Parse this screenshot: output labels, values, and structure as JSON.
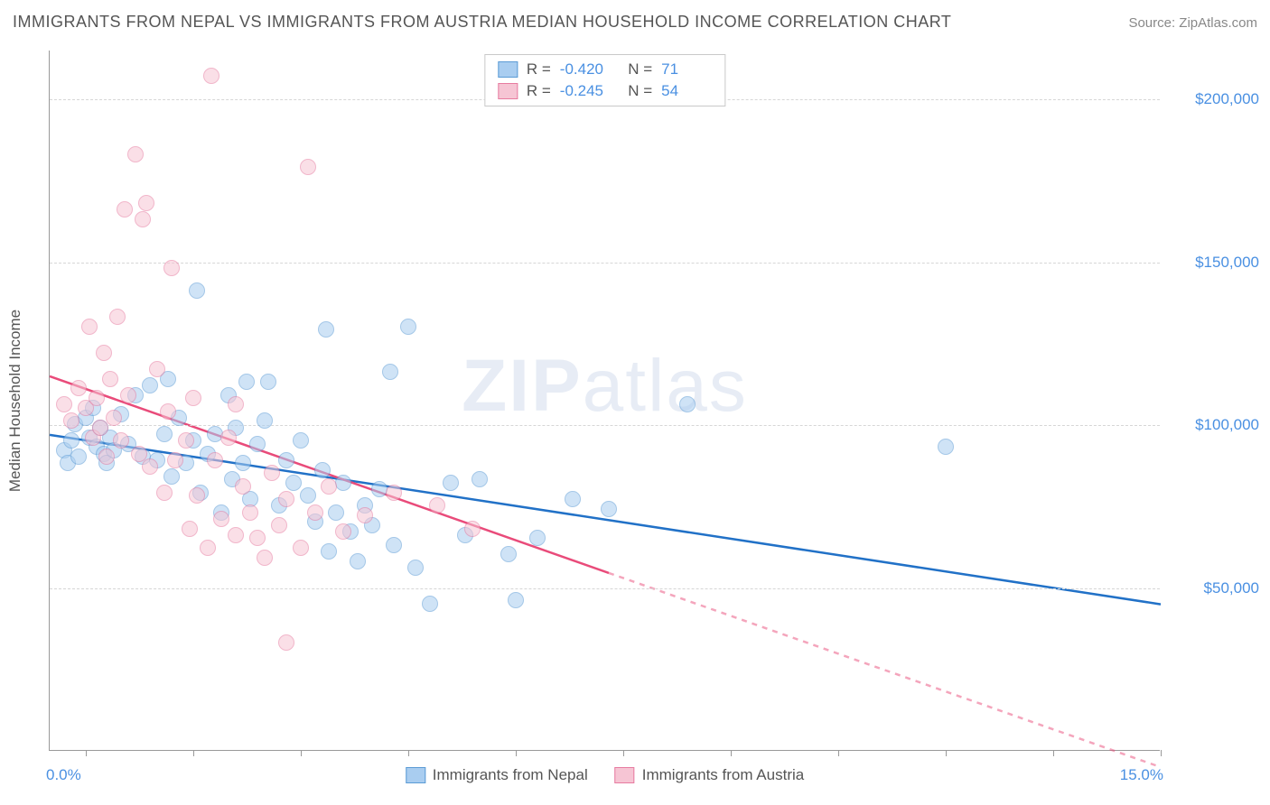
{
  "title": "IMMIGRANTS FROM NEPAL VS IMMIGRANTS FROM AUSTRIA MEDIAN HOUSEHOLD INCOME CORRELATION CHART",
  "source": "Source: ZipAtlas.com",
  "watermark_a": "ZIP",
  "watermark_b": "atlas",
  "yaxis_title": "Median Household Income",
  "xaxis_min_label": "0.0%",
  "xaxis_max_label": "15.0%",
  "chart": {
    "type": "scatter",
    "x_domain": [
      -0.5,
      15.0
    ],
    "y_domain": [
      0,
      215000
    ],
    "x_ticks": [
      0,
      1.5,
      3.0,
      4.5,
      6.0,
      7.5,
      9.0,
      10.5,
      12.0,
      13.5,
      15.0
    ],
    "y_gridlines": [
      {
        "value": 50000,
        "label": "$50,000"
      },
      {
        "value": 100000,
        "label": "$100,000"
      },
      {
        "value": 150000,
        "label": "$150,000"
      },
      {
        "value": 200000,
        "label": "$200,000"
      }
    ],
    "background_color": "#ffffff",
    "grid_color": "#d6d6d6",
    "axis_color": "#999999",
    "label_color": "#4a90e2",
    "point_radius": 9,
    "point_opacity": 0.55,
    "line_width": 2.5,
    "series": [
      {
        "name": "Immigrants from Nepal",
        "fill": "#a9cdf0",
        "stroke": "#5b9bd5",
        "line_color": "#2171c7",
        "r_value": "-0.420",
        "n_value": "71",
        "regression": {
          "x1": -0.5,
          "y1": 97000,
          "x2": 15.0,
          "y2": 45000,
          "solid_until_x": 15.0
        },
        "points": [
          [
            -0.3,
            92000
          ],
          [
            -0.25,
            88000
          ],
          [
            -0.2,
            95000
          ],
          [
            -0.15,
            100000
          ],
          [
            -0.1,
            90000
          ],
          [
            0.0,
            102000
          ],
          [
            0.05,
            96000
          ],
          [
            0.1,
            105000
          ],
          [
            0.15,
            93000
          ],
          [
            0.2,
            99000
          ],
          [
            0.25,
            91000
          ],
          [
            0.3,
            88000
          ],
          [
            0.35,
            96000
          ],
          [
            0.4,
            92000
          ],
          [
            0.5,
            103000
          ],
          [
            0.6,
            94000
          ],
          [
            0.7,
            109000
          ],
          [
            0.8,
            90000
          ],
          [
            0.9,
            112000
          ],
          [
            1.0,
            89000
          ],
          [
            1.1,
            97000
          ],
          [
            1.15,
            114000
          ],
          [
            1.2,
            84000
          ],
          [
            1.3,
            102000
          ],
          [
            1.4,
            88000
          ],
          [
            1.5,
            95000
          ],
          [
            1.55,
            141000
          ],
          [
            1.6,
            79000
          ],
          [
            1.7,
            91000
          ],
          [
            1.8,
            97000
          ],
          [
            1.9,
            73000
          ],
          [
            2.0,
            109000
          ],
          [
            2.05,
            83000
          ],
          [
            2.1,
            99000
          ],
          [
            2.2,
            88000
          ],
          [
            2.25,
            113000
          ],
          [
            2.3,
            77000
          ],
          [
            2.4,
            94000
          ],
          [
            2.5,
            101000
          ],
          [
            2.55,
            113000
          ],
          [
            2.7,
            75000
          ],
          [
            2.8,
            89000
          ],
          [
            2.9,
            82000
          ],
          [
            3.0,
            95000
          ],
          [
            3.1,
            78000
          ],
          [
            3.2,
            70000
          ],
          [
            3.3,
            86000
          ],
          [
            3.35,
            129000
          ],
          [
            3.4,
            61000
          ],
          [
            3.5,
            73000
          ],
          [
            3.6,
            82000
          ],
          [
            3.7,
            67000
          ],
          [
            3.8,
            58000
          ],
          [
            3.9,
            75000
          ],
          [
            4.0,
            69000
          ],
          [
            4.1,
            80000
          ],
          [
            4.25,
            116000
          ],
          [
            4.3,
            63000
          ],
          [
            4.5,
            130000
          ],
          [
            4.6,
            56000
          ],
          [
            4.8,
            45000
          ],
          [
            5.1,
            82000
          ],
          [
            5.3,
            66000
          ],
          [
            5.5,
            83000
          ],
          [
            5.9,
            60000
          ],
          [
            6.0,
            46000
          ],
          [
            6.3,
            65000
          ],
          [
            6.8,
            77000
          ],
          [
            7.3,
            74000
          ],
          [
            8.4,
            106000
          ],
          [
            12.0,
            93000
          ]
        ]
      },
      {
        "name": "Immigrants from Austria",
        "fill": "#f6c5d4",
        "stroke": "#e77ba0",
        "line_color": "#e94b7a",
        "r_value": "-0.245",
        "n_value": "54",
        "regression": {
          "x1": -0.5,
          "y1": 115000,
          "x2": 15.0,
          "y2": -5000,
          "solid_until_x": 7.3
        },
        "points": [
          [
            -0.3,
            106000
          ],
          [
            -0.2,
            101000
          ],
          [
            -0.1,
            111000
          ],
          [
            0.0,
            105000
          ],
          [
            0.05,
            130000
          ],
          [
            0.1,
            96000
          ],
          [
            0.15,
            108000
          ],
          [
            0.2,
            99000
          ],
          [
            0.25,
            122000
          ],
          [
            0.3,
            90000
          ],
          [
            0.35,
            114000
          ],
          [
            0.4,
            102000
          ],
          [
            0.45,
            133000
          ],
          [
            0.5,
            95000
          ],
          [
            0.55,
            166000
          ],
          [
            0.6,
            109000
          ],
          [
            0.7,
            183000
          ],
          [
            0.75,
            91000
          ],
          [
            0.8,
            163000
          ],
          [
            0.85,
            168000
          ],
          [
            0.9,
            87000
          ],
          [
            1.0,
            117000
          ],
          [
            1.1,
            79000
          ],
          [
            1.15,
            104000
          ],
          [
            1.2,
            148000
          ],
          [
            1.25,
            89000
          ],
          [
            1.4,
            95000
          ],
          [
            1.45,
            68000
          ],
          [
            1.5,
            108000
          ],
          [
            1.55,
            78000
          ],
          [
            1.7,
            62000
          ],
          [
            1.75,
            207000
          ],
          [
            1.8,
            89000
          ],
          [
            1.9,
            71000
          ],
          [
            2.0,
            96000
          ],
          [
            2.1,
            106000
          ],
          [
            2.1,
            66000
          ],
          [
            2.2,
            81000
          ],
          [
            2.3,
            73000
          ],
          [
            2.4,
            65000
          ],
          [
            2.5,
            59000
          ],
          [
            2.6,
            85000
          ],
          [
            2.7,
            69000
          ],
          [
            2.8,
            77000
          ],
          [
            2.8,
            33000
          ],
          [
            3.0,
            62000
          ],
          [
            3.1,
            179000
          ],
          [
            3.2,
            73000
          ],
          [
            3.4,
            81000
          ],
          [
            3.6,
            67000
          ],
          [
            3.9,
            72000
          ],
          [
            4.3,
            79000
          ],
          [
            4.9,
            75000
          ],
          [
            5.4,
            68000
          ]
        ]
      }
    ]
  }
}
